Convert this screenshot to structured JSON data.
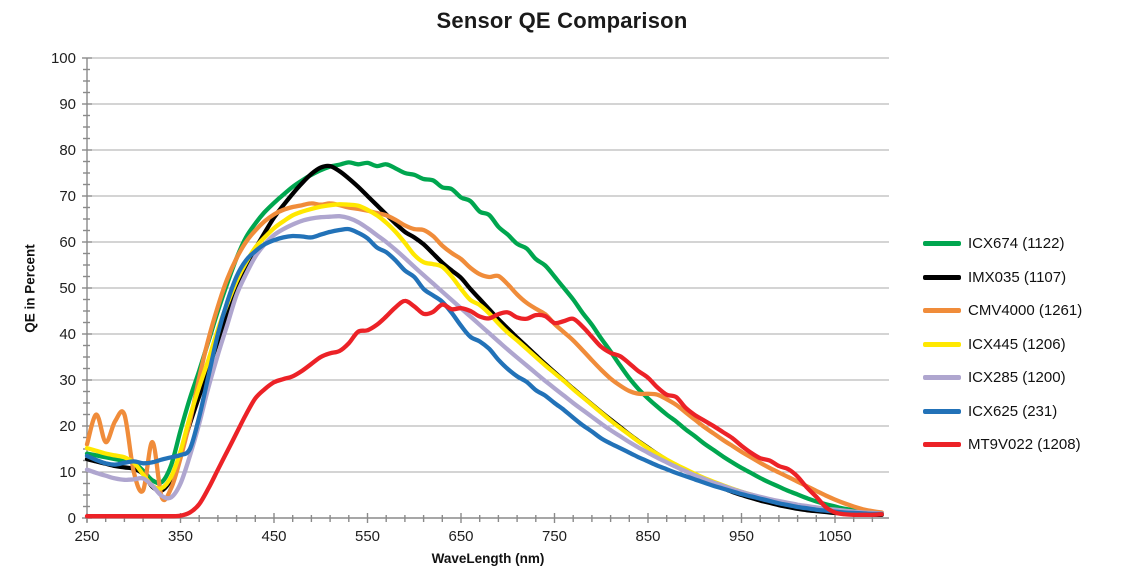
{
  "chart_data": {
    "type": "line",
    "title": "Sensor QE Comparison",
    "xlabel": "WaveLength (nm)",
    "ylabel": "QE in Percent",
    "xlim": [
      250,
      1100
    ],
    "ylim": [
      0,
      100
    ],
    "x_tick_labels": [
      250,
      350,
      450,
      550,
      650,
      750,
      850,
      950,
      1050
    ],
    "x_major_tick_step": 100,
    "x_minor_tick_step": 20,
    "y_major_tick_step": 10,
    "y_minor_tick_step": 2.5,
    "grid": "horizontal gridlines every 10%",
    "legend_position": "right",
    "axis_color": "#8a8a8a",
    "grid_color": "#a8a8a8",
    "tick_label_color": "#1f1f1f",
    "x": [
      250,
      260,
      270,
      280,
      290,
      300,
      310,
      320,
      330,
      340,
      350,
      360,
      370,
      380,
      390,
      400,
      410,
      420,
      430,
      440,
      450,
      460,
      470,
      480,
      490,
      500,
      510,
      520,
      530,
      540,
      550,
      560,
      570,
      580,
      590,
      600,
      610,
      620,
      630,
      640,
      650,
      660,
      670,
      680,
      690,
      700,
      710,
      720,
      730,
      740,
      750,
      760,
      770,
      780,
      790,
      800,
      810,
      820,
      830,
      840,
      850,
      860,
      870,
      880,
      890,
      900,
      910,
      920,
      930,
      940,
      950,
      960,
      970,
      980,
      990,
      1000,
      1010,
      1020,
      1030,
      1040,
      1050,
      1060,
      1070,
      1080,
      1090,
      1100
    ],
    "series": [
      {
        "name": "ICX674 (1122)",
        "color": "#00A64F",
        "values": [
          14,
          13.6,
          13.2,
          12.8,
          12.4,
          12,
          10.3,
          8.2,
          7.8,
          11.5,
          19,
          26,
          32,
          38.5,
          45,
          51,
          56.5,
          61,
          64,
          66.5,
          68.5,
          70.3,
          72,
          73.4,
          74.6,
          75.6,
          76.4,
          76.8,
          77.3,
          76.9,
          77.2,
          76.5,
          76.9,
          76,
          75,
          74.6,
          73.7,
          73.4,
          71.9,
          71.5,
          69.7,
          68.9,
          66.6,
          65.9,
          63.3,
          61.6,
          59.6,
          58.6,
          56.3,
          54.9,
          52.5,
          50,
          47.5,
          44.6,
          42,
          39,
          36.2,
          33.2,
          30.4,
          28,
          26,
          24.2,
          22.5,
          21,
          19.3,
          17.8,
          16.2,
          14.8,
          13.4,
          12.1,
          10.9,
          9.8,
          8.7,
          7.7,
          6.8,
          5.9,
          5.1,
          4.3,
          3.6,
          3,
          2.5,
          2,
          1.7,
          1.4,
          1.2,
          1
        ]
      },
      {
        "name": "IMX035 (1107)",
        "color": "#000000",
        "values": [
          12.8,
          12.3,
          11.8,
          11.3,
          11,
          10.7,
          9.6,
          6.8,
          6,
          8.5,
          14,
          20.5,
          26.5,
          32.5,
          38.5,
          44.5,
          50,
          54.5,
          58.5,
          62,
          65.3,
          68,
          70.5,
          72.8,
          74.8,
          76.2,
          76.5,
          75.4,
          73.8,
          72,
          70,
          68,
          66,
          64,
          62.2,
          61,
          59.5,
          57.5,
          55.5,
          53.8,
          52.2,
          49.8,
          47.6,
          45.4,
          43.2,
          41.2,
          39.2,
          37.3,
          35.4,
          33.5,
          31.7,
          29.9,
          28.1,
          26.4,
          24.7,
          23,
          21.4,
          19.8,
          18.2,
          16.7,
          15.3,
          13.9,
          12.6,
          11.4,
          10.3,
          9.2,
          8.2,
          7.3,
          6.5,
          5.7,
          5,
          4.4,
          3.8,
          3.3,
          2.8,
          2.4,
          2,
          1.7,
          1.5,
          1.3,
          1.1,
          1,
          0.9,
          0.8,
          0.7,
          0.7
        ]
      },
      {
        "name": "CMV4000 (1261)",
        "color": "#F08C3A",
        "values": [
          16,
          22.5,
          16.5,
          21,
          22.5,
          10,
          6,
          16.5,
          4.5,
          6.5,
          13,
          21,
          30.5,
          39,
          46,
          52,
          56.5,
          60,
          62.5,
          64.5,
          66,
          67,
          67.6,
          68,
          68.4,
          68.1,
          68.4,
          68,
          67.5,
          67.2,
          66.8,
          66.3,
          65.8,
          64.8,
          63.6,
          62.8,
          62.6,
          61.3,
          59.2,
          57.6,
          56.3,
          54.4,
          53,
          52.4,
          52.6,
          50.8,
          48.6,
          46.8,
          45.5,
          44.3,
          42.2,
          40.4,
          38.6,
          36.5,
          34.3,
          32.2,
          30.3,
          28.8,
          27.6,
          27,
          27,
          26.8,
          25.8,
          24.6,
          23,
          21.4,
          19.8,
          18.4,
          17,
          15.7,
          14.4,
          13.2,
          12,
          10.9,
          9.9,
          8.9,
          7.9,
          6.9,
          5.9,
          4.9,
          4,
          3.2,
          2.5,
          1.9,
          1.5,
          1.2
        ]
      },
      {
        "name": "ICX445 (1206)",
        "color": "#FFE800",
        "values": [
          15.2,
          14.6,
          14,
          13.6,
          13.2,
          12,
          9.5,
          7,
          6.5,
          9,
          14.5,
          22,
          28.5,
          34.5,
          41,
          46.5,
          51.5,
          55.5,
          58.8,
          61,
          63,
          64.5,
          65.8,
          66.6,
          67.2,
          67.7,
          68,
          68.2,
          68.1,
          67.9,
          67,
          65.8,
          64.2,
          62.2,
          59.8,
          57.2,
          55.6,
          55.2,
          54.6,
          52.5,
          49.8,
          47.4,
          46.3,
          44.5,
          42.3,
          40.3,
          38.6,
          36.8,
          35,
          33.2,
          31.5,
          29.8,
          28,
          26.3,
          24.6,
          22.9,
          21.2,
          19.6,
          18.1,
          16.6,
          15.2,
          13.9,
          12.7,
          11.6,
          10.6,
          9.6,
          8.7,
          7.9,
          7.1,
          6.4,
          5.7,
          5.1,
          4.5,
          4,
          3.5,
          3.1,
          2.7,
          2.4,
          2.1,
          1.8,
          1.6,
          1.4,
          1.2,
          1.1,
          1,
          0.9
        ]
      },
      {
        "name": "ICX285 (1200)",
        "color": "#AFA6CF",
        "values": [
          10.5,
          9.8,
          9.2,
          8.6,
          8.3,
          8.4,
          8.6,
          7,
          4.8,
          4.5,
          7.5,
          13.5,
          20.5,
          28.5,
          35.5,
          42,
          48.5,
          53,
          56.8,
          59.5,
          61.5,
          62.8,
          63.8,
          64.6,
          65.1,
          65.4,
          65.5,
          65.6,
          65.2,
          64.3,
          63,
          61.5,
          60,
          58.3,
          56.5,
          54.6,
          52.8,
          51,
          49.2,
          47.4,
          45.6,
          43.8,
          42,
          40.2,
          38.4,
          36.6,
          34.9,
          33.2,
          31.5,
          29.8,
          28.2,
          26.6,
          25,
          23.5,
          22,
          20.5,
          19.1,
          17.8,
          16.5,
          15.3,
          14.2,
          13.1,
          12.1,
          11.1,
          10.2,
          9.3,
          8.5,
          7.7,
          7,
          6.3,
          5.7,
          5.1,
          4.6,
          4.1,
          3.7,
          3.3,
          2.9,
          2.6,
          2.3,
          2,
          1.8,
          1.6,
          1.4,
          1.2,
          1.1,
          1
        ]
      },
      {
        "name": "ICX625 (231)",
        "color": "#2272B8",
        "values": [
          13.5,
          12.6,
          11.9,
          11.6,
          12,
          12.3,
          11.9,
          12.1,
          12.7,
          13.2,
          13.7,
          15,
          22,
          31,
          40,
          47,
          52.5,
          56,
          58,
          59.5,
          60.4,
          61,
          61.3,
          61.2,
          61,
          61.6,
          62.2,
          62.6,
          62.8,
          62,
          60.8,
          58.8,
          57.8,
          56,
          53.8,
          52.4,
          49.8,
          48.4,
          47,
          44.6,
          41.8,
          39.4,
          38.4,
          36.8,
          34.4,
          32.4,
          30.8,
          29.6,
          27.8,
          26.6,
          25,
          23.5,
          21.8,
          20.2,
          18.8,
          17.3,
          16.2,
          15.2,
          14.2,
          13.2,
          12.3,
          11.4,
          10.6,
          9.8,
          9.1,
          8.4,
          7.7,
          7,
          6.4,
          5.8,
          5.2,
          4.7,
          4.2,
          3.7,
          3.2,
          2.8,
          2.4,
          2.1,
          1.8,
          1.6,
          1.4,
          1.2,
          1.1,
          1,
          0.9,
          0.9
        ]
      },
      {
        "name": "MT9V022 (1208)",
        "color": "#EC2227",
        "values": [
          0.4,
          0.4,
          0.4,
          0.4,
          0.4,
          0.4,
          0.4,
          0.4,
          0.4,
          0.4,
          0.5,
          1.2,
          3,
          6.5,
          10.5,
          14.5,
          18.5,
          22.5,
          26,
          28,
          29.5,
          30.2,
          30.8,
          32,
          33.5,
          35,
          35.8,
          36.3,
          38,
          40.5,
          40.8,
          42,
          43.8,
          45.8,
          47.2,
          46,
          44.4,
          44.8,
          46.4,
          45.4,
          45.6,
          45,
          43.8,
          43.4,
          44.3,
          44.7,
          43.6,
          43.3,
          44.1,
          43.9,
          42.4,
          42.8,
          43.3,
          41.6,
          39.4,
          37.2,
          35.9,
          35.2,
          33.6,
          31.9,
          30.5,
          28.4,
          26.8,
          26.3,
          24,
          22.4,
          21.2,
          20,
          18.7,
          17.4,
          15.7,
          14.2,
          13,
          12.5,
          11.3,
          10.6,
          9,
          6.6,
          4.6,
          2.4,
          1.2,
          0.8,
          0.7,
          0.7,
          0.7,
          0.8
        ]
      }
    ]
  }
}
